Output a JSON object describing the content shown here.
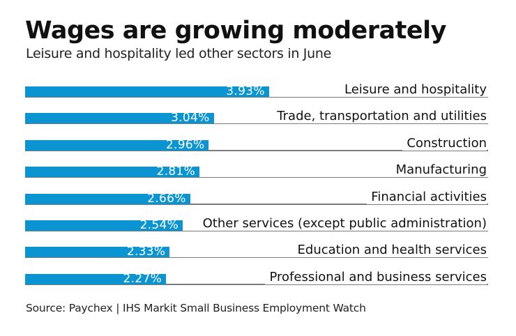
{
  "chart_data": {
    "type": "bar",
    "orientation": "horizontal",
    "title": "Wages are growing moderately",
    "subtitle": "Leisure and hospitality led other sectors in June",
    "source": "Source: Paychex | IHS Markit Small Business Employment Watch",
    "categories": [
      "Leisure and hospitality",
      "Trade, transportation and utilities",
      "Construction",
      "Manufacturing",
      "Financial activities",
      "Other services (except public administration)",
      "Education and health services",
      "Professional and business services"
    ],
    "values": [
      3.93,
      3.04,
      2.96,
      2.81,
      2.66,
      2.54,
      2.33,
      2.27
    ],
    "value_labels": [
      "3.93%",
      "3.04%",
      "2.96%",
      "2.81%",
      "2.66%",
      "2.54%",
      "2.33%",
      "2.27%"
    ],
    "unit": "%",
    "xlim": [
      0,
      7.46
    ],
    "xlabel": "",
    "ylabel": "",
    "grid": false,
    "legend": "none",
    "colors": {
      "bar": "#0a95d2",
      "baseline": "#7a7a7a",
      "value_text": "#ffffff"
    }
  }
}
